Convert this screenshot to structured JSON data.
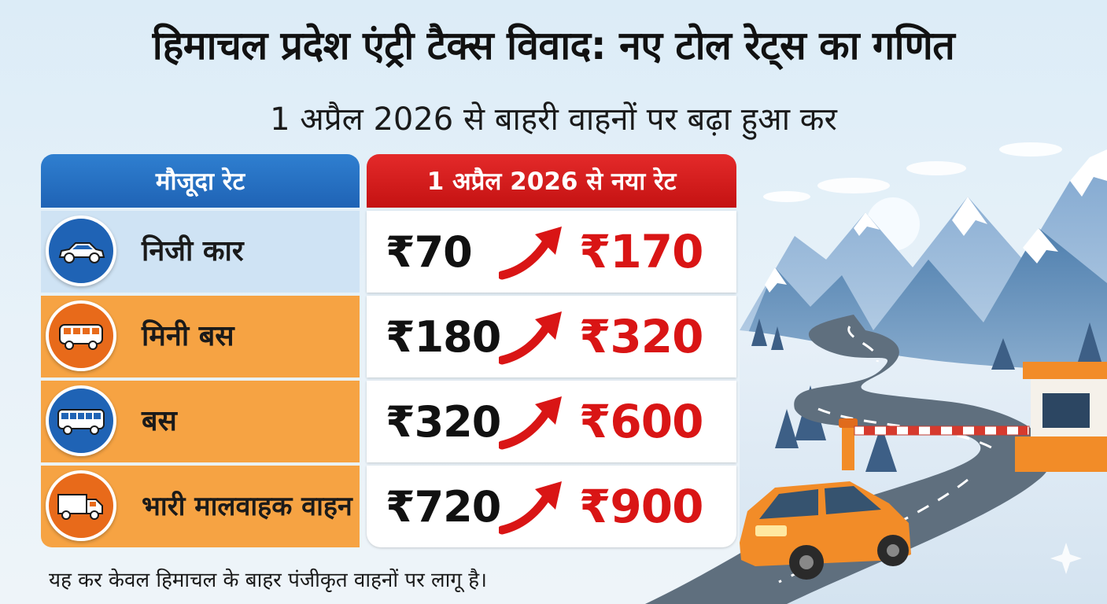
{
  "header": {
    "title": "हिमाचल प्रदेश एंट्री टैक्स विवाद: नए टोल रेट्स का गणित",
    "subtitle": "1 अप्रैल 2026 से बाहरी वाहनों पर बढ़ा हुआ कर"
  },
  "table": {
    "current_rate_label": "मौजूदा रेट",
    "new_rate_label": "1 अप्रैल 2026 से नया रेट",
    "rows": [
      {
        "vehicle": "निजी कार",
        "icon": "car-icon",
        "old": "₹70",
        "new": "₹170"
      },
      {
        "vehicle": "मिनी बस",
        "icon": "minibus-icon",
        "old": "₹180",
        "new": "₹320"
      },
      {
        "vehicle": "बस",
        "icon": "bus-icon",
        "old": "₹320",
        "new": "₹600"
      },
      {
        "vehicle": "भारी मालवाहक वाहन",
        "icon": "truck-icon",
        "old": "₹720",
        "new": "₹900"
      }
    ]
  },
  "footer": {
    "note": "यह कर केवल हिमाचल के बाहर पंजीकृत वाहनों पर लागू है।"
  },
  "colors": {
    "blue_header": "#1f63b5",
    "red_header": "#c41212",
    "orange_row": "#f6a343",
    "blue_row": "#cfe3f4",
    "new_rate_red": "#d91515"
  }
}
